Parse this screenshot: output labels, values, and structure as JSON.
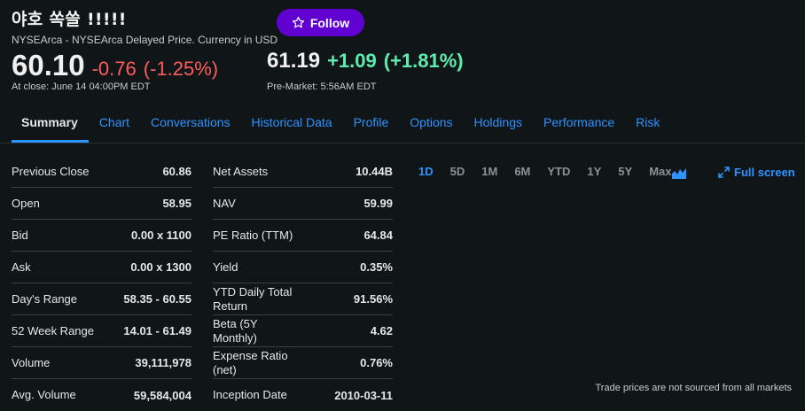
{
  "header": {
    "title": "야호 쏙쓸 !!!!!",
    "subtitle": "NYSEArca - NYSEArca Delayed Price. Currency in USD",
    "follow_label": "Follow"
  },
  "quote": {
    "close_price": "60.10",
    "close_change": "-0.76",
    "close_change_pct": "(-1.25%)",
    "close_label": "At close: June 14 04:00PM EDT",
    "pre_price": "61.19",
    "pre_change": "+1.09",
    "pre_change_pct": "(+1.81%)",
    "pre_label": "Pre-Market: 5:56AM EDT"
  },
  "tabs": [
    {
      "label": "Summary",
      "active": true
    },
    {
      "label": "Chart"
    },
    {
      "label": "Conversations"
    },
    {
      "label": "Historical Data"
    },
    {
      "label": "Profile"
    },
    {
      "label": "Options"
    },
    {
      "label": "Holdings"
    },
    {
      "label": "Performance"
    },
    {
      "label": "Risk"
    }
  ],
  "stats_left": [
    {
      "label": "Previous Close",
      "value": "60.86"
    },
    {
      "label": "Open",
      "value": "58.95"
    },
    {
      "label": "Bid",
      "value": "0.00 x 1100"
    },
    {
      "label": "Ask",
      "value": "0.00 x 1300"
    },
    {
      "label": "Day's Range",
      "value": "58.35 - 60.55"
    },
    {
      "label": "52 Week Range",
      "value": "14.01 - 61.49"
    },
    {
      "label": "Volume",
      "value": "39,111,978"
    },
    {
      "label": "Avg. Volume",
      "value": "59,584,004"
    }
  ],
  "stats_right": [
    {
      "label": "Net Assets",
      "value": "10.44B"
    },
    {
      "label": "NAV",
      "value": "59.99"
    },
    {
      "label": "PE Ratio (TTM)",
      "value": "64.84"
    },
    {
      "label": "Yield",
      "value": "0.35%"
    },
    {
      "label": "YTD Daily Total Return",
      "value": "91.56%"
    },
    {
      "label": "Beta (5Y Monthly)",
      "value": "4.62"
    },
    {
      "label": "Expense Ratio (net)",
      "value": "0.76%"
    },
    {
      "label": "Inception Date",
      "value": "2010-03-11"
    }
  ],
  "chart": {
    "ranges": [
      "1D",
      "5D",
      "1M",
      "6M",
      "YTD",
      "1Y",
      "5Y",
      "Max"
    ],
    "active_range": "1D",
    "fullscreen_label": "Full screen",
    "disclaimer": "Trade prices are not sourced from all markets"
  },
  "colors": {
    "background": "#101518",
    "accent": "#2e93ff",
    "follow": "#6001d2",
    "negative": "#ff5b5b",
    "positive": "#5eedb0"
  }
}
